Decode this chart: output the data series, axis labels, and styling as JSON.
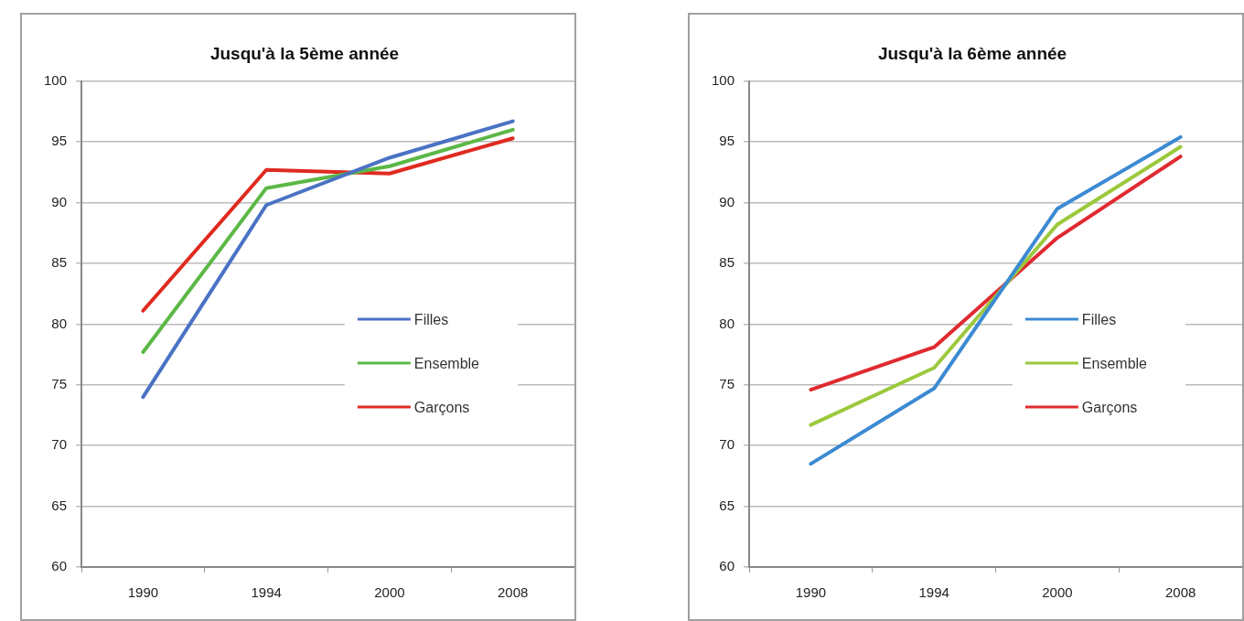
{
  "chart_data": [
    {
      "type": "line",
      "title": "Jusqu'à la 5ème année",
      "categories": [
        "1990",
        "1994",
        "2000",
        "2008"
      ],
      "ylim": [
        60,
        100
      ],
      "yticks": [
        60,
        65,
        70,
        75,
        80,
        85,
        90,
        95,
        100
      ],
      "grid": "y",
      "legend": "right",
      "marker": "none",
      "series": [
        {
          "name": "Filles",
          "color": "#4a72c4",
          "values": [
            74.0,
            89.8,
            93.7,
            96.7
          ]
        },
        {
          "name": "Ensemble",
          "color": "#5cb846",
          "values": [
            77.7,
            91.2,
            93.0,
            96.0
          ]
        },
        {
          "name": "Garçons",
          "color": "#e02a20",
          "values": [
            81.1,
            92.7,
            92.4,
            95.3
          ]
        }
      ]
    },
    {
      "type": "line",
      "title": "Jusqu'à la 6ème année",
      "categories": [
        "1990",
        "1994",
        "2000",
        "2008"
      ],
      "ylim": [
        60,
        100
      ],
      "yticks": [
        60,
        65,
        70,
        75,
        80,
        85,
        90,
        95,
        100
      ],
      "grid": "y",
      "legend": "right",
      "marker": "none",
      "series": [
        {
          "name": "Filles",
          "color": "#3c8ad2",
          "values": [
            68.5,
            74.7,
            89.5,
            95.4
          ]
        },
        {
          "name": "Ensemble",
          "color": "#9cc83c",
          "values": [
            71.7,
            76.4,
            88.2,
            94.6
          ]
        },
        {
          "name": "Garçons",
          "color": "#e02a30",
          "values": [
            74.6,
            78.1,
            87.1,
            93.8
          ]
        }
      ]
    }
  ]
}
